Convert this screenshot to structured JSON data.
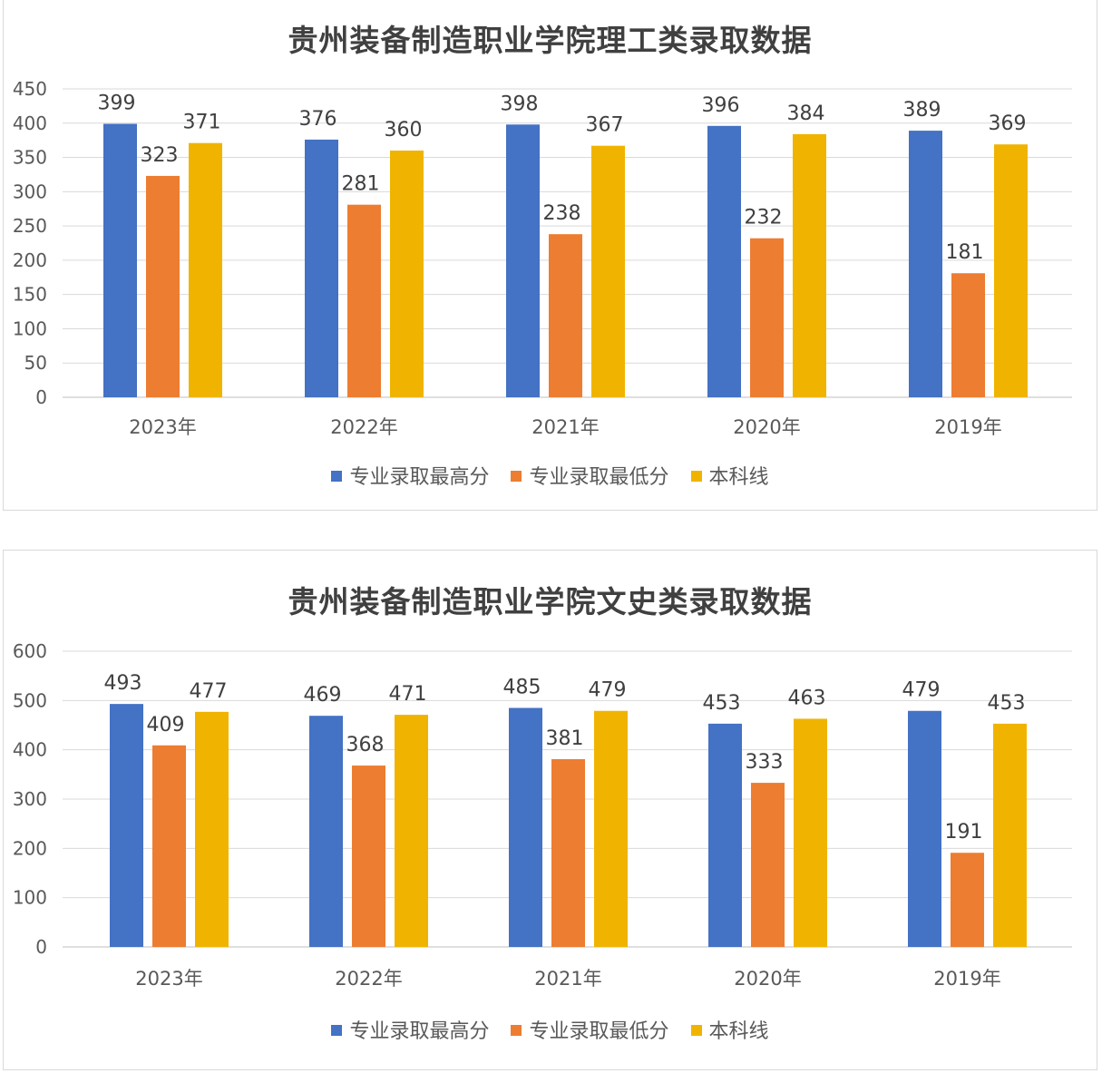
{
  "chart_data": [
    {
      "type": "bar",
      "title": "贵州装备制造职业学院理工类录取数据",
      "categories": [
        "2023年",
        "2022年",
        "2021年",
        "2020年",
        "2019年"
      ],
      "series": [
        {
          "name": "专业录取最高分",
          "values": [
            399,
            376,
            398,
            396,
            389
          ],
          "color": "#4472c4"
        },
        {
          "name": "专业录取最低分",
          "values": [
            323,
            281,
            238,
            232,
            181
          ],
          "color": "#ed7d31"
        },
        {
          "name": "本科线",
          "values": [
            371,
            360,
            367,
            384,
            369
          ],
          "color": "#f0b400"
        }
      ],
      "ylim": [
        0,
        450
      ],
      "yticks": [
        0,
        50,
        100,
        150,
        200,
        250,
        300,
        350,
        400,
        450
      ],
      "grid": true,
      "legend": "bottom",
      "data_labels": true
    },
    {
      "type": "bar",
      "title": "贵州装备制造职业学院文史类录取数据",
      "categories": [
        "2023年",
        "2022年",
        "2021年",
        "2020年",
        "2019年"
      ],
      "series": [
        {
          "name": "专业录取最高分",
          "values": [
            493,
            469,
            485,
            453,
            479
          ],
          "color": "#4472c4"
        },
        {
          "name": "专业录取最低分",
          "values": [
            409,
            368,
            381,
            333,
            191
          ],
          "color": "#ed7d31"
        },
        {
          "name": "本科线",
          "values": [
            477,
            471,
            479,
            463,
            453
          ],
          "color": "#f0b400"
        }
      ],
      "ylim": [
        0,
        600
      ],
      "yticks": [
        0,
        100,
        200,
        300,
        400,
        500,
        600
      ],
      "grid": true,
      "legend": "bottom",
      "data_labels": true
    }
  ]
}
